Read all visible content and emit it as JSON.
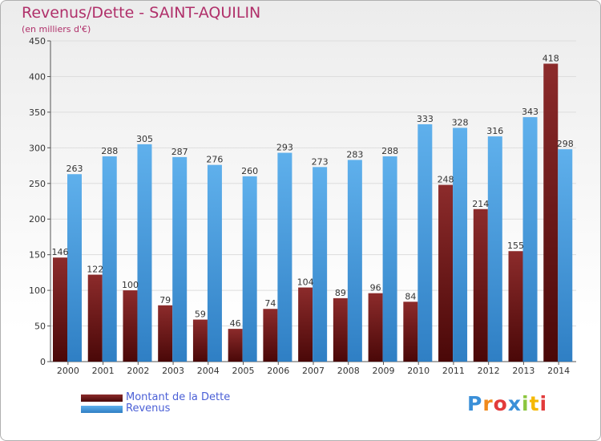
{
  "header": {
    "title": "Revenus/Dette - SAINT-AQUILIN",
    "subtitle": "(en milliers d'€)"
  },
  "legend": {
    "debt_label": "Montant de la Dette",
    "revenue_label": "Revenus"
  },
  "logo": {
    "text": "Proxiti",
    "letters": [
      {
        "ch": "P",
        "color": "#3a8fd8"
      },
      {
        "ch": "r",
        "color": "#f08a1c"
      },
      {
        "ch": "o",
        "color": "#e23b3b"
      },
      {
        "ch": "x",
        "color": "#3a8fd8"
      },
      {
        "ch": "i",
        "color": "#8cc63e"
      },
      {
        "ch": "t",
        "color": "#f5b800"
      },
      {
        "ch": "i",
        "color": "#e23b3b"
      }
    ]
  },
  "colors": {
    "debt_top": "#8c2b2b",
    "debt_bottom": "#4a0808",
    "revenue_top": "#5fb0ec",
    "revenue_bottom": "#2f7fc4",
    "grid": "#dddddd",
    "title": "#b0306a",
    "legend_text": "#4a5fd6"
  },
  "chart_data": {
    "type": "bar",
    "title": "Revenus/Dette - SAINT-AQUILIN",
    "subtitle": "(en milliers d'€)",
    "xlabel": "",
    "ylabel": "",
    "ylim": [
      0,
      450
    ],
    "yticks": [
      0,
      50,
      100,
      150,
      200,
      250,
      300,
      350,
      400,
      450
    ],
    "grid": true,
    "legend_position": "bottom-left",
    "categories": [
      "2000",
      "2001",
      "2002",
      "2003",
      "2004",
      "2005",
      "2006",
      "2007",
      "2008",
      "2009",
      "2010",
      "2011",
      "2012",
      "2013",
      "2014"
    ],
    "series": [
      {
        "name": "Montant de la Dette",
        "values": [
          146,
          122,
          100,
          79,
          59,
          46,
          74,
          104,
          89,
          96,
          84,
          248,
          214,
          155,
          418
        ]
      },
      {
        "name": "Revenus",
        "values": [
          263,
          288,
          305,
          287,
          276,
          260,
          293,
          273,
          283,
          288,
          333,
          328,
          316,
          343,
          298
        ]
      }
    ]
  }
}
